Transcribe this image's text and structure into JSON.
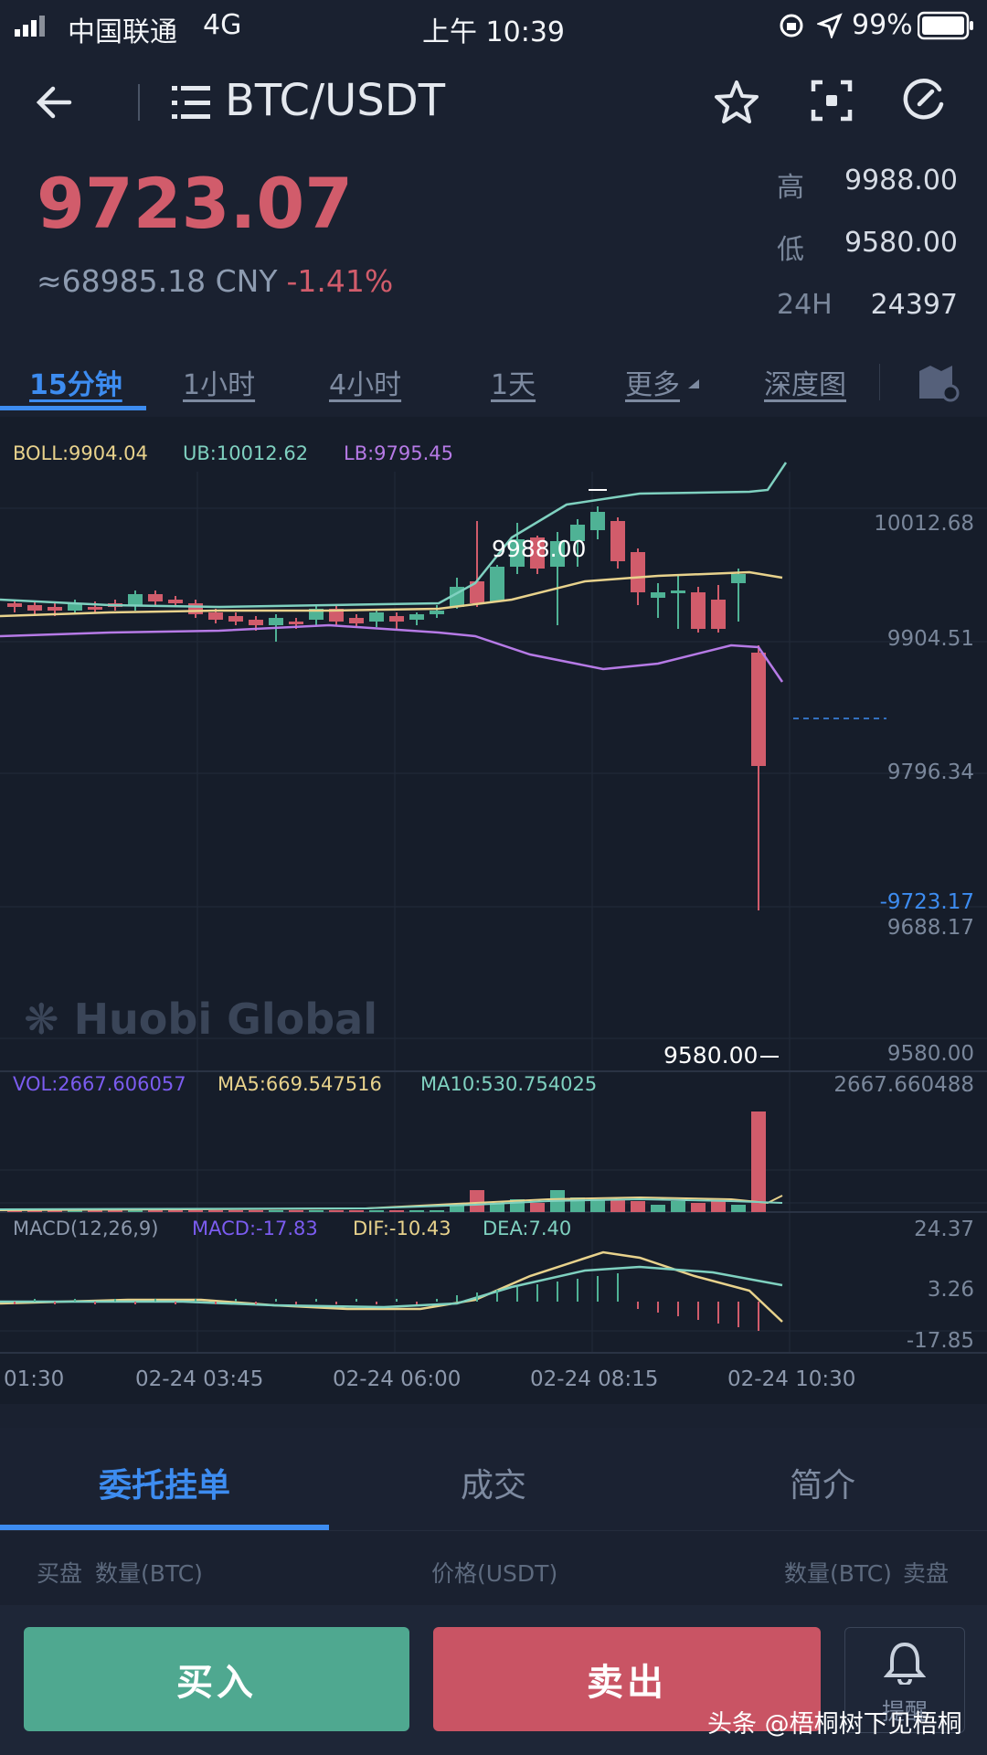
{
  "status_bar": {
    "carrier": "中国联通",
    "network": "4G",
    "time": "上午 10:39",
    "battery": "99%"
  },
  "header": {
    "pair": "BTC/USDT"
  },
  "ticker": {
    "price": "9723.07",
    "cny": "≈68985.18 CNY",
    "change": "-1.41%",
    "stats": [
      {
        "label": "高",
        "value": "9988.00"
      },
      {
        "label": "低",
        "value": "9580.00"
      },
      {
        "label": "24H",
        "value": "24397"
      }
    ]
  },
  "intervals": [
    "15分钟",
    "1小时",
    "4小时",
    "1天",
    "更多",
    "深度图"
  ],
  "chart": {
    "indicators_main": {
      "boll": "BOLL:9904.04",
      "ub": "UB:10012.62",
      "lb": "LB:9795.45"
    },
    "y_labels": [
      "10012.68",
      "9904.51",
      "9796.34",
      "9688.17",
      "9580.00"
    ],
    "current_price_marker": "-9723.17",
    "high_marker": "9988.00",
    "low_marker": "9580.00",
    "watermark": "Huobi Global",
    "indicators_vol": {
      "vol": "VOL:2667.606057",
      "ma5": "MA5:669.547516",
      "ma10": "MA10:530.754025"
    },
    "vol_max": "2667.660488",
    "indicators_macd": {
      "macd_label": "MACD(12,26,9)",
      "macd": "MACD:-17.83",
      "dif": "DIF:-10.43",
      "dea": "DEA:7.40"
    },
    "macd_y": [
      "24.37",
      "3.26",
      "-17.85"
    ],
    "x_labels": [
      "01:30",
      "02-24 03:45",
      "02-24 06:00",
      "02-24 08:15",
      "02-24 10:30"
    ]
  },
  "bottom_tabs": [
    "委托挂单",
    "成交",
    "简介"
  ],
  "orderbook_headers": {
    "buy_side": "买盘",
    "buy_qty": "数量(BTC)",
    "price": "价格(USDT)",
    "sell_qty": "数量(BTC)",
    "sell_side": "卖盘"
  },
  "actions": {
    "buy": "买入",
    "sell": "卖出",
    "alert": "提醒"
  },
  "watermark_author": "头条 @梧桐树下见梧桐",
  "colors": {
    "up": "#4fb295",
    "down": "#d15c6b",
    "accent": "#3d8cf0",
    "boll": "#e8d28c",
    "ub": "#7fd1c0",
    "lb": "#b67ae6"
  }
}
